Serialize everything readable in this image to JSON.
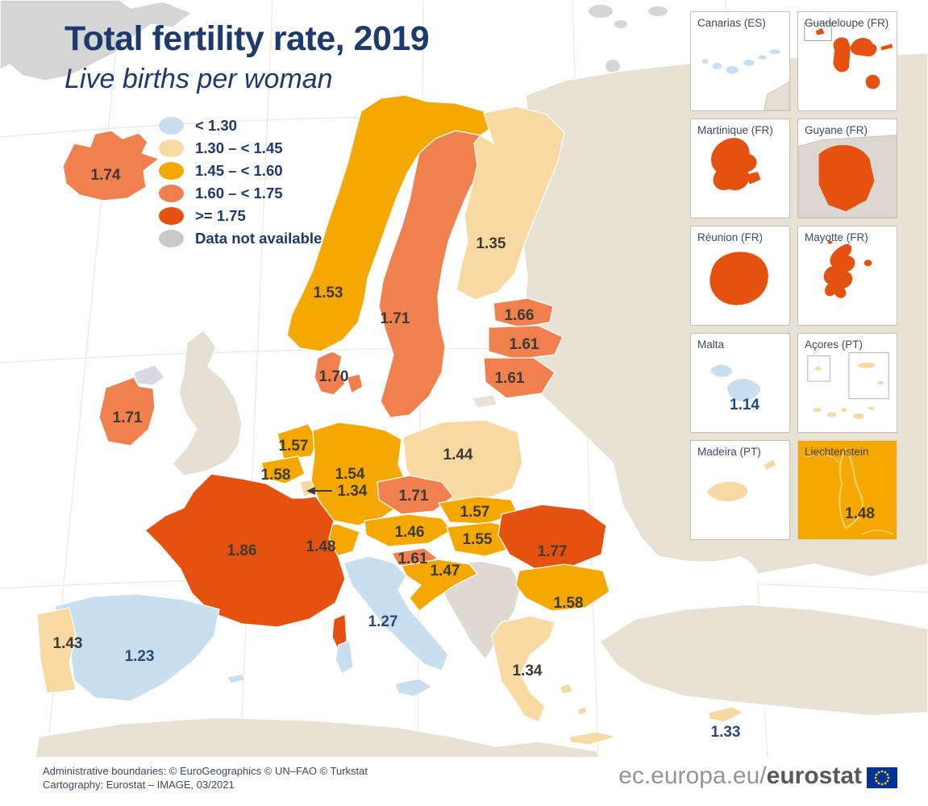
{
  "title": "Total fertility rate, 2019",
  "subtitle": "Live births per woman",
  "legend": {
    "items": [
      {
        "label": "< 1.30",
        "color": "#c8dff0"
      },
      {
        "label": "1.30 – < 1.45",
        "color": "#f8d9a2"
      },
      {
        "label": "1.45 – < 1.60",
        "color": "#f5a800"
      },
      {
        "label": "1.60 – < 1.75",
        "color": "#f0814f"
      },
      {
        "label": ">= 1.75",
        "color": "#e5510f"
      },
      {
        "label": "Data not available",
        "color": "#c9c9c9"
      }
    ]
  },
  "chart_data": {
    "type": "heatmap",
    "subtype": "choropleth-map",
    "title": "Total fertility rate, 2019",
    "subtitle": "Live births per woman",
    "unit": "live births per woman",
    "bins": [
      {
        "label": "< 1.30",
        "max": 1.3,
        "color": "#c8dff0"
      },
      {
        "label": "1.30 – < 1.45",
        "max": 1.45,
        "color": "#f8d9a2"
      },
      {
        "label": "1.45 – < 1.60",
        "max": 1.6,
        "color": "#f5a800"
      },
      {
        "label": "1.60 – < 1.75",
        "max": 1.75,
        "color": "#f0814f"
      },
      {
        "label": ">= 1.75",
        "max": 99,
        "color": "#e5510f"
      },
      {
        "label": "Data not available",
        "color": "#c9c9c9"
      }
    ],
    "regions": [
      {
        "name": "Iceland",
        "value": 1.74,
        "label": "1.74"
      },
      {
        "name": "Norway",
        "value": 1.53,
        "label": "1.53"
      },
      {
        "name": "Sweden",
        "value": 1.71,
        "label": "1.71"
      },
      {
        "name": "Finland",
        "value": 1.35,
        "label": "1.35"
      },
      {
        "name": "Denmark",
        "value": 1.7,
        "label": "1.70"
      },
      {
        "name": "Estonia",
        "value": 1.66,
        "label": "1.66"
      },
      {
        "name": "Latvia",
        "value": 1.61,
        "label": "1.61"
      },
      {
        "name": "Lithuania",
        "value": 1.61,
        "label": "1.61"
      },
      {
        "name": "Ireland",
        "value": 1.71,
        "label": "1.71"
      },
      {
        "name": "Netherlands",
        "value": 1.57,
        "label": "1.57"
      },
      {
        "name": "Belgium",
        "value": 1.58,
        "label": "1.58"
      },
      {
        "name": "Luxembourg",
        "value": 1.34,
        "label": "1.34"
      },
      {
        "name": "Germany",
        "value": 1.54,
        "label": "1.54"
      },
      {
        "name": "Poland",
        "value": 1.44,
        "label": "1.44"
      },
      {
        "name": "Czechia",
        "value": 1.71,
        "label": "1.71"
      },
      {
        "name": "Slovakia",
        "value": 1.57,
        "label": "1.57"
      },
      {
        "name": "Austria",
        "value": 1.46,
        "label": "1.46"
      },
      {
        "name": "Hungary",
        "value": 1.55,
        "label": "1.55"
      },
      {
        "name": "Switzerland",
        "value": 1.48,
        "label": "1.48"
      },
      {
        "name": "Slovenia",
        "value": 1.61,
        "label": "1.61"
      },
      {
        "name": "Croatia",
        "value": 1.47,
        "label": "1.47"
      },
      {
        "name": "France",
        "value": 1.86,
        "label": "1.86"
      },
      {
        "name": "Spain",
        "value": 1.23,
        "label": "1.23"
      },
      {
        "name": "Portugal",
        "value": 1.43,
        "label": "1.43"
      },
      {
        "name": "Italy",
        "value": 1.27,
        "label": "1.27"
      },
      {
        "name": "Romania",
        "value": 1.77,
        "label": "1.77"
      },
      {
        "name": "Bulgaria",
        "value": 1.58,
        "label": "1.58"
      },
      {
        "name": "Greece",
        "value": 1.34,
        "label": "1.34"
      },
      {
        "name": "Cyprus",
        "value": 1.33,
        "label": "1.33"
      },
      {
        "name": "Malta",
        "value": 1.14,
        "label": "1.14"
      },
      {
        "name": "Liechtenstein",
        "value": 1.48,
        "label": "1.48"
      }
    ]
  },
  "insets": [
    {
      "key": "canarias",
      "label": "Canarias (ES)",
      "value": ""
    },
    {
      "key": "guadeloupe",
      "label": "Guadeloupe (FR)",
      "value": ""
    },
    {
      "key": "martinique",
      "label": "Martinique (FR)",
      "value": ""
    },
    {
      "key": "guyane",
      "label": "Guyane (FR)",
      "value": ""
    },
    {
      "key": "reunion",
      "label": "Réunion (FR)",
      "value": ""
    },
    {
      "key": "mayotte",
      "label": "Mayotte (FR)",
      "value": ""
    },
    {
      "key": "malta",
      "label": "Malta",
      "value": "1.14"
    },
    {
      "key": "acores",
      "label": "Açores (PT)",
      "value": ""
    },
    {
      "key": "madeira",
      "label": "Madeira (PT)",
      "value": ""
    },
    {
      "key": "liechtenstein",
      "label": "Liechtenstein",
      "value": "1.48"
    }
  ],
  "footer": {
    "line1": "Administrative boundaries: © EuroGeographics © UN–FAO © Turkstat",
    "line2": "Cartography: Eurostat – IMAGE, 03/2021",
    "logo_prefix": "ec.europa.eu/",
    "logo_bold": "eurostat"
  },
  "colors": {
    "title_navy": "#1c3a6e",
    "non_eu_land": "#e7e2d4",
    "no_data_gray": "#d5d5d5",
    "balkans_gray": "#dedad2",
    "sea": "#ffffff",
    "eu_flag_blue": "#003399",
    "eu_flag_stars": "#ffcc00"
  }
}
